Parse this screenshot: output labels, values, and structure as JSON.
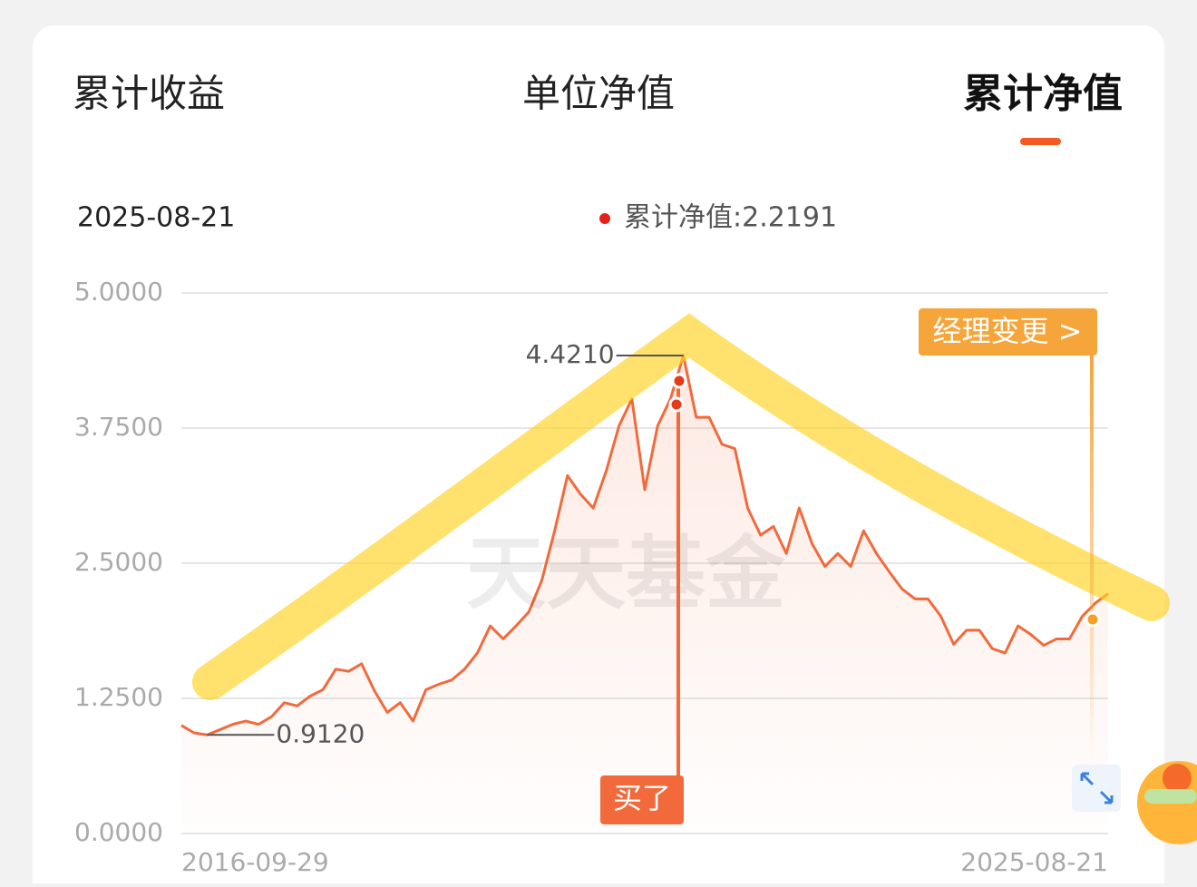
{
  "tabs": [
    "累计收益",
    "单位净值",
    "累计净值"
  ],
  "header": {
    "date": "2025-08-21",
    "legend": "累计净值:2.2191"
  },
  "watermark": "天天基金",
  "chart_data": {
    "type": "line",
    "categories": [
      "2016-09-29",
      null,
      null,
      null,
      null,
      null,
      null,
      null,
      null,
      null,
      null,
      null,
      null,
      null,
      null,
      null,
      null,
      null,
      null,
      null,
      null,
      null,
      null,
      null,
      null,
      null,
      null,
      null,
      null,
      null,
      null,
      null,
      null,
      null,
      null,
      null,
      null,
      null,
      null,
      null,
      null,
      null,
      null,
      null,
      null,
      null,
      null,
      null,
      null,
      null,
      null,
      null,
      null,
      null,
      null,
      null,
      null,
      null,
      null,
      null,
      null,
      null,
      null,
      null,
      null,
      null,
      null,
      null,
      null,
      null,
      null,
      null,
      "2025-08-21"
    ],
    "series": [
      {
        "name": "累计净值",
        "color": "#f26a3b",
        "values": [
          1.0,
          0.93,
          0.912,
          0.96,
          1.01,
          1.04,
          1.01,
          1.08,
          1.21,
          1.18,
          1.27,
          1.33,
          1.52,
          1.5,
          1.57,
          1.32,
          1.12,
          1.21,
          1.04,
          1.33,
          1.38,
          1.42,
          1.52,
          1.67,
          1.92,
          1.8,
          1.92,
          2.05,
          2.34,
          2.8,
          3.31,
          3.14,
          3.01,
          3.35,
          3.77,
          4.02,
          3.18,
          3.77,
          4.02,
          4.421,
          3.85,
          3.85,
          3.6,
          3.56,
          3.01,
          2.76,
          2.84,
          2.59,
          3.01,
          2.68,
          2.47,
          2.59,
          2.47,
          2.8,
          2.59,
          2.42,
          2.26,
          2.17,
          2.17,
          2.01,
          1.75,
          1.88,
          1.88,
          1.71,
          1.67,
          1.92,
          1.84,
          1.74,
          1.8,
          1.8,
          2.01,
          2.13,
          2.2191
        ]
      }
    ],
    "ylim": [
      0,
      5
    ],
    "yticks": [
      {
        "value": 0,
        "label": "0.0000"
      },
      {
        "value": 1.25,
        "label": "1.2500"
      },
      {
        "value": 2.5,
        "label": "2.5000"
      },
      {
        "value": 3.75,
        "label": "3.7500"
      },
      {
        "value": 5,
        "label": "5.0000"
      }
    ],
    "grid": true,
    "max_label": {
      "value": 4.421,
      "label": "4.4210"
    },
    "min_label": {
      "value": 0.912,
      "label": "0.9120"
    },
    "annotations": [
      "买了",
      "经理变更 >"
    ]
  }
}
